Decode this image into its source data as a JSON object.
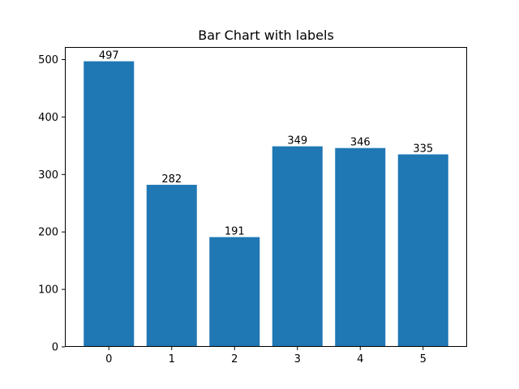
{
  "chart_data": {
    "type": "bar",
    "title": "Bar Chart with labels",
    "xlabel": "",
    "ylabel": "",
    "categories": [
      "0",
      "1",
      "2",
      "3",
      "4",
      "5"
    ],
    "values": [
      497,
      282,
      191,
      349,
      346,
      335
    ],
    "data_labels": [
      "497",
      "282",
      "191",
      "349",
      "346",
      "335"
    ],
    "ylim": [
      0,
      521.85
    ],
    "yticks": [
      0,
      100,
      200,
      300,
      400,
      500
    ],
    "ytick_labels": [
      "0",
      "100",
      "200",
      "300",
      "400",
      "500"
    ],
    "grid": false,
    "bar_color": "#1f77b4"
  }
}
